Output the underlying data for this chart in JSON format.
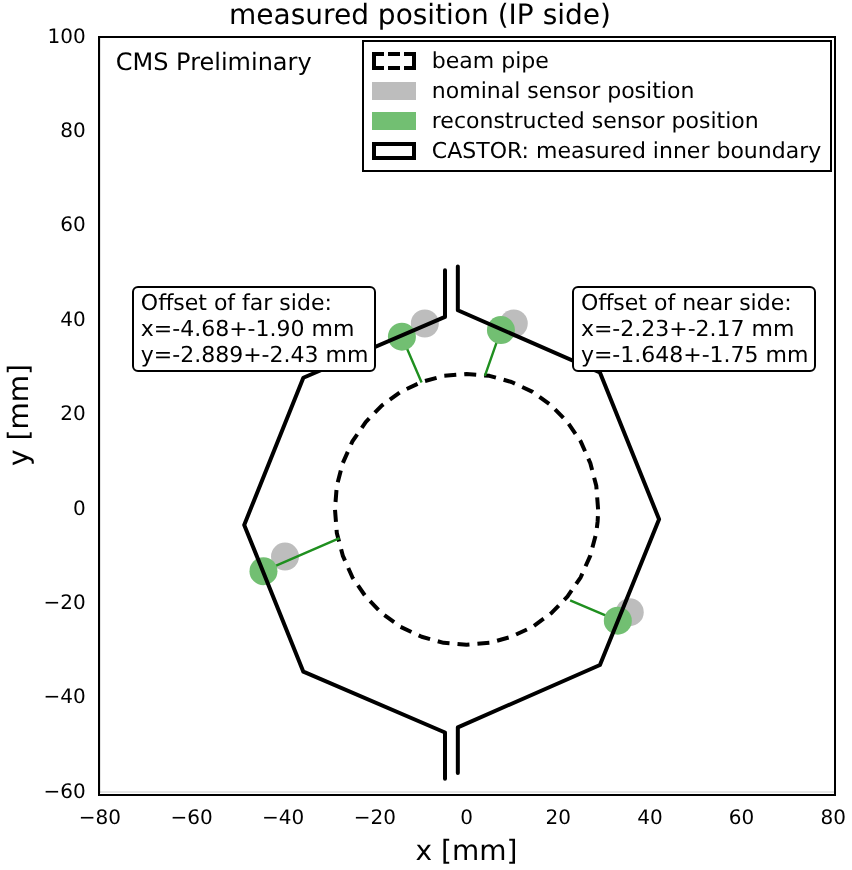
{
  "chart_data": {
    "type": "scatter",
    "title": "measured position (IP side)",
    "xlabel": "x [mm]",
    "ylabel": "y [mm]",
    "xlim": [
      -80,
      80
    ],
    "xticks": [
      -80,
      -60,
      -40,
      -20,
      0,
      20,
      40,
      60,
      80
    ],
    "ylim": [
      -60,
      100
    ],
    "yticks": [
      -60,
      -40,
      -20,
      0,
      20,
      40,
      60,
      80,
      100
    ],
    "grid": false,
    "legend": "top right",
    "marker": "circle",
    "annotations": [
      "CMS Preliminary",
      "Offset of far side:\nx=-4.68+-1.90 mm\ny=-2.889+-2.43 mm",
      "Offset of near side:\nx=-2.23+-2.17 mm\ny=-1.648+-1.75 mm"
    ],
    "series": [
      {
        "name": "beam pipe",
        "type": "line",
        "color": "#000000",
        "line_style": "dashed",
        "marker": "none",
        "x": [
          28.7,
          28.3,
          27.0,
          24.9,
          22.0,
          18.5,
          14.4,
          9.8,
          5.0,
          0,
          -5.0,
          -9.8,
          -14.4,
          -18.5,
          -22.0,
          -24.9,
          -27.0,
          -28.3,
          -28.7,
          -28.3,
          -27.0,
          -24.9,
          -22.0,
          -18.5,
          -14.4,
          -9.8,
          -5.0,
          0,
          5.0,
          9.8,
          14.4,
          18.5,
          22.0,
          24.9,
          27.0,
          28.3,
          28.6,
          28.7
        ],
        "values": [
          0,
          5.0,
          9.8,
          14.4,
          18.5,
          22.0,
          24.9,
          27.0,
          28.3,
          28.7,
          28.3,
          27.0,
          24.9,
          22.0,
          18.5,
          14.4,
          9.8,
          5.0,
          0,
          -5.0,
          -9.8,
          -14.4,
          -18.5,
          -22.0,
          -24.9,
          -27.0,
          -28.3,
          -28.7,
          -28.3,
          -27.0,
          -24.9,
          -22.0,
          -18.5,
          -14.4,
          -9.8,
          -5.0,
          -2.5,
          -0.5
        ]
      },
      {
        "name": "nominal sensor position",
        "color": "#bdbdbd",
        "x": [
          -9.1,
          10.3,
          -39.6,
          35.6
        ],
        "values": [
          39.4,
          39.4,
          -10.0,
          -21.8
        ]
      },
      {
        "type": "line",
        "color": "#1f8f1f",
        "line_style": "solid",
        "marker": "none",
        "x": [
          -14.1,
          -9.8,
          null,
          7.5,
          4.0,
          null,
          -44.3,
          -27.7,
          null,
          33.0,
          22.6
        ],
        "values": [
          36.6,
          26.9,
          null,
          38.0,
          28.3,
          null,
          -13.1,
          -6.1,
          null,
          -23.6,
          -19.3
        ]
      },
      {
        "name": "reconstructed sensor position",
        "color": "#72bf72",
        "x": [
          -14.1,
          7.5,
          -44.3,
          33.0
        ],
        "values": [
          36.6,
          38.0,
          -13.1,
          -23.6
        ]
      },
      {
        "name": "CASTOR: measured inner boundary",
        "type": "line",
        "color": "#000000",
        "line_style": "solid",
        "marker": "none",
        "x": [
          -4.7,
          -4.7,
          -35.6,
          -48.5,
          -35.6,
          -4.7,
          -4.7
        ],
        "values": [
          50.7,
          40.8,
          27.9,
          -3.3,
          -34.4,
          -47.3,
          -57.1
        ]
      },
      {
        "type": "line",
        "color": "#000000",
        "line_style": "solid",
        "marker": "none",
        "x": [
          -1.9,
          -1.9,
          29.1,
          42.0,
          29.1,
          -1.9,
          -1.9
        ],
        "values": [
          51.5,
          42.2,
          29.0,
          -2.1,
          -33.0,
          -46.2,
          -55.9
        ]
      }
    ]
  }
}
